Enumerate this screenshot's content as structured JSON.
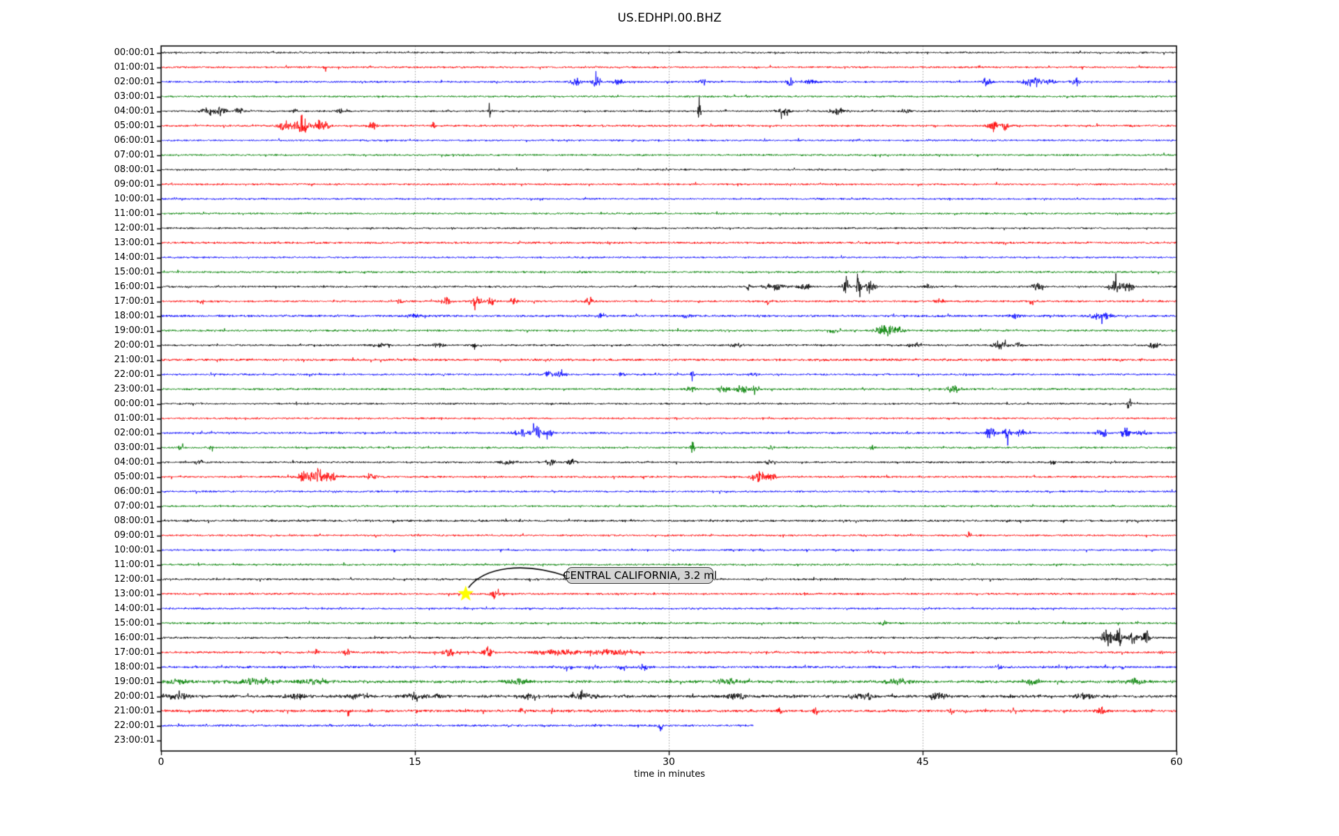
{
  "title": "US.EDHPI.00.BHZ",
  "chart_data": {
    "type": "seismogram-helicorder",
    "station": "US.EDHPI.00.BHZ",
    "xlabel": "time in minutes",
    "x_ticks": [
      "0",
      "15",
      "30",
      "45",
      "60"
    ],
    "x_tick_minutes": [
      0,
      15,
      30,
      45,
      60
    ],
    "x_range_minutes": [
      0,
      60
    ],
    "minutes_per_row": 60,
    "grid_minutes": [
      15,
      30,
      45
    ],
    "grid_style": "dotted-gray",
    "trace_color_cycle": [
      "#000000",
      "#ff0000",
      "#0000ff",
      "#008000"
    ],
    "annotation": {
      "text": "CENTRAL CALIFORNIA, 3.2 ml",
      "row_index": 37,
      "minute": 18,
      "marker": "yellow-star",
      "marker_color": "#ffff00",
      "box_color": "#d4d4d4"
    },
    "rows": [
      {
        "label": "00:00:01",
        "color": "#000000",
        "noise": 1.4,
        "end": 60,
        "events": []
      },
      {
        "label": "01:00:01",
        "color": "#ff0000",
        "noise": 1.5,
        "end": 60,
        "events": [
          [
            9.7,
            5,
            0.15
          ]
        ]
      },
      {
        "label": "02:00:01",
        "color": "#0000ff",
        "noise": 1.5,
        "end": 60,
        "events": [
          [
            24.5,
            5,
            0.4
          ],
          [
            25.7,
            8,
            0.25
          ],
          [
            27,
            5,
            0.25
          ],
          [
            32,
            6,
            0.15
          ],
          [
            37.2,
            9,
            0.2
          ],
          [
            38.3,
            4,
            0.4
          ],
          [
            48.8,
            6,
            0.3
          ],
          [
            51.5,
            7,
            0.5
          ],
          [
            52.5,
            5,
            0.3
          ],
          [
            54,
            7,
            0.25
          ]
        ]
      },
      {
        "label": "03:00:01",
        "color": "#008000",
        "noise": 1.5,
        "end": 60,
        "events": []
      },
      {
        "label": "04:00:01",
        "color": "#000000",
        "noise": 1.4,
        "end": 60,
        "events": [
          [
            2.8,
            7,
            0.35
          ],
          [
            3.6,
            9,
            0.25
          ],
          [
            4.6,
            6,
            0.25
          ],
          [
            7.9,
            4,
            0.15
          ],
          [
            10.5,
            4,
            0.15
          ],
          [
            19.4,
            13,
            0.06
          ],
          [
            31.8,
            34,
            0.07
          ],
          [
            36.8,
            5,
            0.4
          ],
          [
            40,
            6,
            0.4
          ],
          [
            44,
            3,
            0.3
          ]
        ]
      },
      {
        "label": "05:00:01",
        "color": "#ff0000",
        "noise": 1.6,
        "end": 60,
        "events": [
          [
            7.3,
            8,
            0.4
          ],
          [
            8.3,
            15,
            0.4
          ],
          [
            9.5,
            9,
            0.4
          ],
          [
            12.5,
            5,
            0.25
          ],
          [
            16.1,
            11,
            0.1
          ],
          [
            49.2,
            9,
            0.3
          ],
          [
            49.9,
            7,
            0.2
          ]
        ]
      },
      {
        "label": "06:00:01",
        "color": "#0000ff",
        "noise": 1.4,
        "end": 60,
        "events": []
      },
      {
        "label": "07:00:01",
        "color": "#008000",
        "noise": 1.5,
        "end": 60,
        "events": []
      },
      {
        "label": "08:00:01",
        "color": "#000000",
        "noise": 1.3,
        "end": 60,
        "events": []
      },
      {
        "label": "09:00:01",
        "color": "#ff0000",
        "noise": 1.5,
        "end": 60,
        "events": []
      },
      {
        "label": "10:00:01",
        "color": "#0000ff",
        "noise": 1.4,
        "end": 60,
        "events": []
      },
      {
        "label": "11:00:01",
        "color": "#008000",
        "noise": 1.5,
        "end": 60,
        "events": []
      },
      {
        "label": "12:00:01",
        "color": "#000000",
        "noise": 1.4,
        "end": 60,
        "events": []
      },
      {
        "label": "13:00:01",
        "color": "#ff0000",
        "noise": 1.7,
        "end": 60,
        "events": []
      },
      {
        "label": "14:00:01",
        "color": "#0000ff",
        "noise": 1.4,
        "end": 60,
        "events": []
      },
      {
        "label": "15:00:01",
        "color": "#008000",
        "noise": 1.6,
        "end": 60,
        "events": []
      },
      {
        "label": "16:00:01",
        "color": "#000000",
        "noise": 1.5,
        "end": 60,
        "events": [
          [
            34.7,
            10,
            0.08
          ],
          [
            36.2,
            5,
            0.6
          ],
          [
            38,
            4,
            0.4
          ],
          [
            40.5,
            21,
            0.18
          ],
          [
            41.2,
            25,
            0.15
          ],
          [
            41.9,
            11,
            0.25
          ],
          [
            45.3,
            4,
            0.25
          ],
          [
            51.7,
            6,
            0.3
          ],
          [
            56.4,
            9,
            0.4
          ],
          [
            57.2,
            11,
            0.25
          ]
        ]
      },
      {
        "label": "17:00:01",
        "color": "#ff0000",
        "noise": 1.6,
        "end": 60,
        "events": [
          [
            2.3,
            4,
            0.15
          ],
          [
            14.1,
            6,
            0.15
          ],
          [
            16.8,
            7,
            0.25
          ],
          [
            18.6,
            8,
            0.3
          ],
          [
            19.5,
            6,
            0.25
          ],
          [
            20.8,
            5,
            0.25
          ],
          [
            25.3,
            7,
            0.2
          ],
          [
            35.8,
            8,
            0.12,
            -1
          ],
          [
            46,
            4,
            0.25
          ],
          [
            51.3,
            7,
            0.15,
            -1
          ]
        ]
      },
      {
        "label": "18:00:01",
        "color": "#0000ff",
        "noise": 1.8,
        "end": 60,
        "events": [
          [
            14.9,
            4,
            0.3
          ],
          [
            26,
            4,
            0.25
          ],
          [
            31,
            3,
            0.3
          ],
          [
            50.5,
            3,
            0.3
          ],
          [
            55.5,
            5,
            0.6
          ]
        ]
      },
      {
        "label": "19:00:01",
        "color": "#008000",
        "noise": 1.6,
        "end": 60,
        "events": [
          [
            39.7,
            4,
            0.25,
            -1
          ],
          [
            42.8,
            9,
            0.5
          ],
          [
            43.6,
            6,
            0.3
          ]
        ]
      },
      {
        "label": "20:00:01",
        "color": "#000000",
        "noise": 1.5,
        "end": 60,
        "events": [
          [
            13,
            3,
            0.4
          ],
          [
            16.4,
            4,
            0.3
          ],
          [
            18.5,
            6,
            0.12
          ],
          [
            34,
            3,
            0.4
          ],
          [
            44.5,
            4,
            0.3
          ],
          [
            49.6,
            7,
            0.4
          ],
          [
            50.6,
            5,
            0.3
          ],
          [
            58.7,
            5,
            0.3
          ]
        ]
      },
      {
        "label": "21:00:01",
        "color": "#ff0000",
        "noise": 1.9,
        "end": 60,
        "events": []
      },
      {
        "label": "22:00:01",
        "color": "#0000ff",
        "noise": 1.5,
        "end": 60,
        "events": [
          [
            22.9,
            5,
            0.25
          ],
          [
            23.6,
            4,
            0.25
          ],
          [
            27.2,
            5,
            0.15
          ],
          [
            31.4,
            9,
            0.12
          ],
          [
            35,
            3,
            0.25
          ]
        ]
      },
      {
        "label": "23:00:01",
        "color": "#008000",
        "noise": 1.6,
        "end": 60,
        "events": [
          [
            31.3,
            4,
            0.25
          ],
          [
            33.2,
            6,
            0.3
          ],
          [
            34.3,
            7,
            0.3
          ],
          [
            35.1,
            5,
            0.25
          ],
          [
            46.8,
            7,
            0.4
          ]
        ]
      },
      {
        "label": "00:00:01",
        "color": "#000000",
        "noise": 1.4,
        "end": 60,
        "events": [
          [
            57.2,
            13,
            0.1
          ]
        ]
      },
      {
        "label": "01:00:01",
        "color": "#ff0000",
        "noise": 1.4,
        "end": 60,
        "events": []
      },
      {
        "label": "02:00:01",
        "color": "#0000ff",
        "noise": 1.6,
        "end": 60,
        "events": [
          [
            21.3,
            7,
            0.4
          ],
          [
            22.2,
            10,
            0.3
          ],
          [
            23,
            6,
            0.25
          ],
          [
            49,
            11,
            0.25
          ],
          [
            50,
            8,
            0.3
          ],
          [
            50.8,
            6,
            0.25
          ],
          [
            55.6,
            9,
            0.25
          ],
          [
            57,
            10,
            0.25
          ],
          [
            58,
            5,
            0.3
          ]
        ]
      },
      {
        "label": "03:00:01",
        "color": "#008000",
        "noise": 1.5,
        "end": 60,
        "events": [
          [
            1.2,
            6,
            0.15
          ],
          [
            3,
            7,
            0.12
          ],
          [
            31.4,
            10,
            0.12
          ],
          [
            36,
            4,
            0.15
          ],
          [
            42,
            3,
            0.15
          ]
        ]
      },
      {
        "label": "04:00:01",
        "color": "#000000",
        "noise": 1.5,
        "end": 60,
        "events": [
          [
            2.2,
            4,
            0.25
          ],
          [
            20.5,
            4,
            0.4
          ],
          [
            23,
            5,
            0.3
          ],
          [
            24.3,
            4,
            0.25
          ],
          [
            36,
            3,
            0.25
          ],
          [
            52.7,
            4,
            0.15
          ]
        ]
      },
      {
        "label": "05:00:01",
        "color": "#ff0000",
        "noise": 1.6,
        "end": 60,
        "events": [
          [
            8.5,
            9,
            0.5
          ],
          [
            9.3,
            16,
            0.3
          ],
          [
            10,
            9,
            0.3
          ],
          [
            12.4,
            6,
            0.25
          ],
          [
            35.3,
            8,
            0.4
          ],
          [
            36.1,
            8,
            0.25
          ]
        ]
      },
      {
        "label": "06:00:01",
        "color": "#0000ff",
        "noise": 1.5,
        "end": 60,
        "events": []
      },
      {
        "label": "07:00:01",
        "color": "#008000",
        "noise": 1.5,
        "end": 60,
        "events": []
      },
      {
        "label": "08:00:01",
        "color": "#000000",
        "noise": 1.7,
        "end": 60,
        "events": []
      },
      {
        "label": "09:00:01",
        "color": "#ff0000",
        "noise": 1.5,
        "end": 60,
        "events": [
          [
            47.7,
            5,
            0.08
          ]
        ]
      },
      {
        "label": "10:00:01",
        "color": "#0000ff",
        "noise": 1.4,
        "end": 60,
        "events": []
      },
      {
        "label": "11:00:01",
        "color": "#008000",
        "noise": 1.5,
        "end": 60,
        "events": []
      },
      {
        "label": "12:00:01",
        "color": "#000000",
        "noise": 1.5,
        "end": 60,
        "events": []
      },
      {
        "label": "13:00:01",
        "color": "#ff0000",
        "noise": 1.6,
        "end": 60,
        "events": [
          [
            19.7,
            8,
            0.25
          ]
        ]
      },
      {
        "label": "14:00:01",
        "color": "#0000ff",
        "noise": 1.5,
        "end": 60,
        "events": []
      },
      {
        "label": "15:00:01",
        "color": "#008000",
        "noise": 1.6,
        "end": 60,
        "events": [
          [
            42.7,
            6,
            0.12
          ]
        ]
      },
      {
        "label": "16:00:01",
        "color": "#000000",
        "noise": 1.6,
        "end": 60,
        "events": [
          [
            55.9,
            17,
            0.25
          ],
          [
            56.6,
            14,
            0.25
          ],
          [
            57.4,
            9,
            0.3
          ],
          [
            58.2,
            7,
            0.25
          ]
        ]
      },
      {
        "label": "17:00:01",
        "color": "#ff0000",
        "noise": 1.8,
        "end": 60,
        "events": [
          [
            9.2,
            5,
            0.15
          ],
          [
            11,
            4,
            0.25
          ],
          [
            17,
            8,
            0.3
          ],
          [
            19.3,
            10,
            0.25
          ],
          [
            23.5,
            4,
            1.2
          ],
          [
            26.5,
            4,
            1.2
          ]
        ]
      },
      {
        "label": "18:00:01",
        "color": "#0000ff",
        "noise": 1.8,
        "end": 60,
        "events": [
          [
            24,
            5,
            0.3,
            -1
          ],
          [
            25.5,
            6,
            0.25,
            -1
          ],
          [
            27.3,
            7,
            0.25,
            -1
          ],
          [
            28.5,
            4,
            0.25
          ],
          [
            49.5,
            4,
            0.15
          ]
        ]
      },
      {
        "label": "19:00:01",
        "color": "#008000",
        "noise": 2.2,
        "end": 60,
        "events": [
          [
            1,
            4,
            0.7
          ],
          [
            5.5,
            3.5,
            1.2
          ],
          [
            9,
            3.5,
            0.8
          ],
          [
            21,
            4,
            0.7
          ],
          [
            33.5,
            4,
            0.7
          ],
          [
            43.5,
            4,
            0.7
          ],
          [
            51.5,
            4,
            0.5
          ],
          [
            57.5,
            4,
            0.5
          ]
        ]
      },
      {
        "label": "20:00:01",
        "color": "#000000",
        "noise": 2.3,
        "end": 60,
        "events": [
          [
            1,
            4,
            0.7
          ],
          [
            8,
            4,
            0.7
          ],
          [
            11.5,
            4,
            0.5
          ],
          [
            15,
            5,
            0.7
          ],
          [
            16.4,
            7,
            0.15
          ],
          [
            21.5,
            4,
            0.5
          ],
          [
            25,
            3.5,
            0.7
          ],
          [
            34,
            4,
            0.5
          ],
          [
            41.5,
            4,
            0.7
          ],
          [
            46,
            4,
            0.5
          ],
          [
            54.5,
            4,
            0.5
          ]
        ]
      },
      {
        "label": "21:00:01",
        "color": "#ff0000",
        "noise": 2.1,
        "end": 60,
        "events": [
          [
            11.1,
            16,
            0.07,
            -1
          ],
          [
            21.3,
            9,
            0.12,
            1
          ],
          [
            36.5,
            5,
            0.15
          ],
          [
            38.7,
            5,
            0.15
          ],
          [
            46.7,
            6,
            0.12
          ],
          [
            55.6,
            5,
            0.25
          ]
        ]
      },
      {
        "label": "22:00:01",
        "color": "#0000ff",
        "noise": 1.7,
        "end": 35,
        "events": [
          [
            29.5,
            7,
            0.15,
            -1
          ]
        ]
      },
      {
        "label": "23:00:01",
        "color": "#008000",
        "noise": 0,
        "end": 0,
        "events": []
      }
    ]
  }
}
